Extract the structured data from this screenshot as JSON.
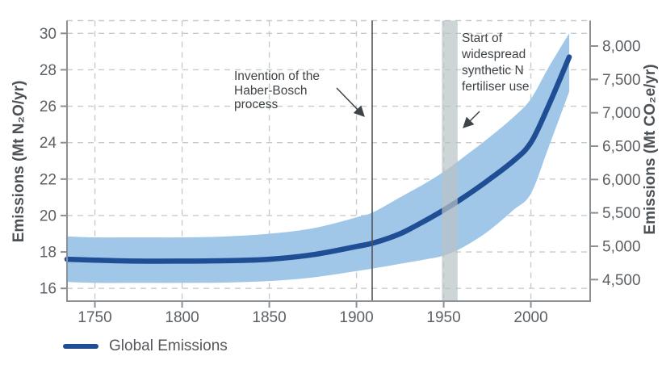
{
  "colors": {
    "background": "#ffffff",
    "grid": "#c7cbce",
    "spine": "#8b9095",
    "tick_label": "#5c6064",
    "axis_title": "#4c5156",
    "annotation_text": "#3e4347",
    "arrow": "#3e4347",
    "series_line": "#1f4e94",
    "uncertainty_band": "#a0c6e8",
    "event_band": "#b9c3c4",
    "event_line": "#515457"
  },
  "legend": {
    "position": "bottom-left",
    "label": "Global Emissions"
  },
  "chart_data": {
    "type": "line",
    "title": "",
    "grid": true,
    "x_axis": {
      "label": "",
      "domain": [
        1734,
        2034
      ],
      "ticks": [
        1750,
        1800,
        1850,
        1900,
        1950,
        2000
      ]
    },
    "y_axis_left": {
      "label": "Emissions (Mt N₂O/yr)",
      "domain": [
        15.3,
        30.7
      ],
      "ticks": [
        16,
        18,
        20,
        22,
        24,
        26,
        28,
        30
      ]
    },
    "y_axis_right": {
      "label": "Emissions (Mt CO₂e/yr)",
      "ticks": [
        4500,
        5000,
        5500,
        6000,
        6500,
        7000,
        7500,
        8000
      ],
      "n2o_to_co2e_factor": 273
    },
    "x_years": [
      1734,
      1750,
      1775,
      1800,
      1825,
      1850,
      1875,
      1900,
      1910,
      1925,
      1940,
      1950,
      1960,
      1975,
      1990,
      2000,
      2010,
      2022
    ],
    "series": [
      {
        "name": "Global Emissions",
        "color": "#1f4e94",
        "values": [
          17.6,
          17.55,
          17.5,
          17.5,
          17.52,
          17.6,
          17.85,
          18.3,
          18.5,
          19.0,
          19.75,
          20.3,
          20.9,
          21.9,
          23.0,
          24.0,
          26.0,
          28.7
        ]
      }
    ],
    "uncertainty_band": {
      "color": "#a0c6e8",
      "upper": [
        18.85,
        18.8,
        18.8,
        18.8,
        18.85,
        19.0,
        19.3,
        19.9,
        20.2,
        21.0,
        21.8,
        22.4,
        23.1,
        24.2,
        25.4,
        26.4,
        28.1,
        30.0
      ],
      "lower": [
        16.35,
        16.3,
        16.3,
        16.3,
        16.32,
        16.4,
        16.6,
        16.95,
        17.1,
        17.35,
        17.6,
        17.8,
        18.2,
        19.1,
        20.3,
        21.2,
        23.7,
        26.8
      ]
    },
    "events": [
      {
        "kind": "vline",
        "year": 1909,
        "annotation": "Invention of the\nHaber-Bosch\nprocess",
        "color": "#515457"
      },
      {
        "kind": "vband",
        "from": 1949,
        "to": 1958,
        "annotation": "Start of\nwidespread\nsynthetic N\nfertiliser use",
        "color": "#b9c3c4"
      }
    ]
  }
}
